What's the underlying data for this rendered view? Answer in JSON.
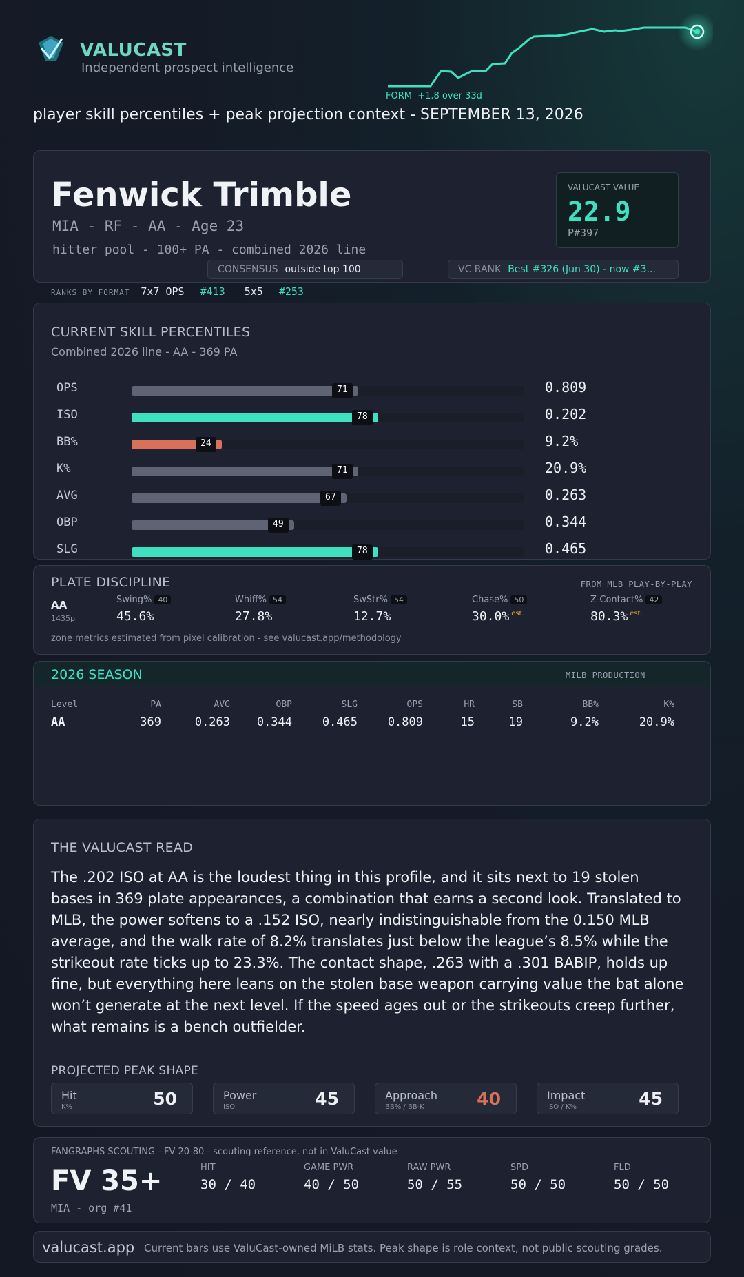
{
  "header": {
    "brand": "VALUCAST",
    "tagline": "Independent prospect intelligence",
    "form_label": "FORM",
    "form_delta": "+1.8 over 33d",
    "subtitle": "player skill percentiles + peak projection context - SEPTEMBER 13, 2026"
  },
  "player": {
    "name": "Fenwick Trimble",
    "meta": "MIA - RF - AA - Age 23",
    "pool": "hitter pool - 100+ PA - combined 2026 line",
    "vc_label": "VALUCAST VALUE",
    "vc_value": "22.9",
    "vc_rank": "P#397",
    "consensus_label": "CONSENSUS",
    "consensus_value": "outside top 100",
    "vcrank_label": "VC RANK",
    "vcrank_value": "Best #326 (Jun 30) - now #3..."
  },
  "formats": {
    "label": "RANKS BY FORMAT",
    "f1_name": "7x7 OPS",
    "f1_rank": "#413",
    "f2_name": "5x5",
    "f2_rank": "#253"
  },
  "skills": {
    "title": "CURRENT SKILL PERCENTILES",
    "subtitle": "Combined 2026 line - AA - 369 PA",
    "rows": [
      {
        "name": "OPS",
        "pct": 71,
        "value": "0.809",
        "color": "#5e6474"
      },
      {
        "name": "ISO",
        "pct": 78,
        "value": "0.202",
        "color": "#3ee0c0"
      },
      {
        "name": "BB%",
        "pct": 24,
        "value": "9.2%",
        "color": "#d9705a"
      },
      {
        "name": "K%",
        "pct": 71,
        "value": "20.9%",
        "color": "#5e6474"
      },
      {
        "name": "AVG",
        "pct": 67,
        "value": "0.263",
        "color": "#5e6474"
      },
      {
        "name": "OBP",
        "pct": 49,
        "value": "0.344",
        "color": "#5e6474"
      },
      {
        "name": "SLG",
        "pct": 78,
        "value": "0.465",
        "color": "#3ee0c0"
      }
    ]
  },
  "plate": {
    "title": "PLATE DISCIPLINE",
    "source": "FROM MLB PLAY-BY-PLAY",
    "level": "AA",
    "pitches": "1435p",
    "metrics": [
      {
        "name": "Swing%",
        "pct": "40",
        "value": "45.6%",
        "est": ""
      },
      {
        "name": "Whiff%",
        "pct": "54",
        "value": "27.8%",
        "est": ""
      },
      {
        "name": "SwStr%",
        "pct": "54",
        "value": "12.7%",
        "est": ""
      },
      {
        "name": "Chase%",
        "pct": "50",
        "value": "30.0%",
        "est": "est."
      },
      {
        "name": "Z-Contact%",
        "pct": "42",
        "value": "80.3%",
        "est": "est."
      }
    ],
    "note": "zone metrics estimated from pixel calibration - see valucast.app/methodology"
  },
  "season": {
    "title": "2026 SEASON",
    "source": "MILB PRODUCTION",
    "headers": [
      "Level",
      "PA",
      "AVG",
      "OBP",
      "SLG",
      "OPS",
      "HR",
      "SB",
      "BB%",
      "K%"
    ],
    "row": [
      "AA",
      "369",
      "0.263",
      "0.344",
      "0.465",
      "0.809",
      "15",
      "19",
      "9.2%",
      "20.9%"
    ]
  },
  "read": {
    "title": "THE VALUCAST READ",
    "body": "The .202 ISO at AA is the loudest thing in this profile, and it sits next to 19 stolen bases in 369 plate appearances, a combination that earns a second look. Translated to MLB, the power softens to a .152 ISO, nearly indistinguishable from the 0.150 MLB average, and the walk rate of 8.2% translates just below the league’s 8.5% while the strikeout rate ticks up to 23.3%. The contact shape, .263 with a .301 BABIP, holds up fine, but everything here leans on the stolen base weapon carrying value the bat alone won’t generate at the next level. If the speed ages out or the strikeouts creep further, what remains is a bench outfielder.",
    "peak_title": "PROJECTED PEAK SHAPE",
    "peak": [
      {
        "name": "Hit",
        "sub": "K%",
        "value": "50",
        "color": "#eef0f4"
      },
      {
        "name": "Power",
        "sub": "ISO",
        "value": "45",
        "color": "#eef0f4"
      },
      {
        "name": "Approach",
        "sub": "BB% / BB-K",
        "value": "40",
        "color": "#d9705a"
      },
      {
        "name": "Impact",
        "sub": "ISO / K%",
        "value": "45",
        "color": "#eef0f4"
      }
    ]
  },
  "scouting": {
    "caption": "FANGRAPHS SCOUTING - FV 20-80 - scouting reference, not in ValuCast value",
    "fv": "FV 35+",
    "org": "MIA - org #41",
    "grades": [
      {
        "name": "HIT",
        "value": "30 / 40"
      },
      {
        "name": "GAME PWR",
        "value": "40 / 50"
      },
      {
        "name": "RAW PWR",
        "value": "50 / 55"
      },
      {
        "name": "SPD",
        "value": "50 / 50"
      },
      {
        "name": "FLD",
        "value": "50 / 50"
      }
    ]
  },
  "footer": {
    "site": "valucast.app",
    "note": "Current bars use ValuCast-owned MiLB stats. Peak shape is role context, not public scouting grades."
  }
}
